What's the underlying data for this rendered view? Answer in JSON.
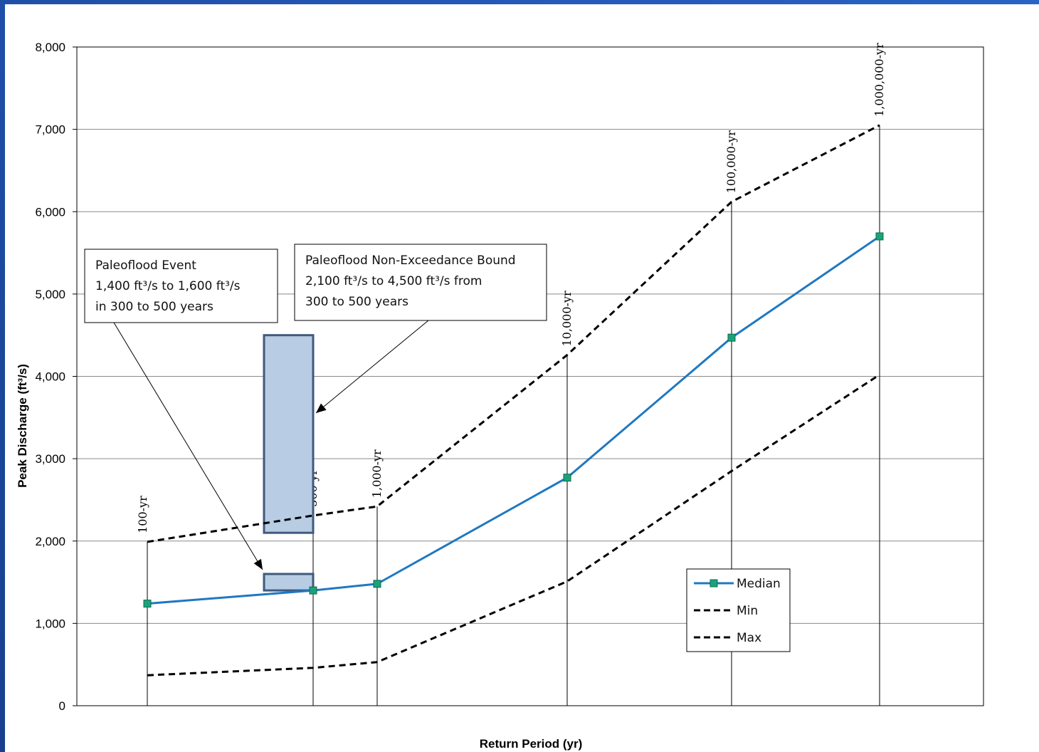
{
  "chart_data": {
    "type": "line",
    "xlabel": "Return Period (yr)",
    "ylabel": "Peak Discharge (ft³/s)",
    "ylim": [
      0,
      8000
    ],
    "y_ticks": [
      "0",
      "1,000",
      "2,000",
      "3,000",
      "4,000",
      "5,000",
      "6,000",
      "7,000",
      "8,000"
    ],
    "y_tick_values": [
      0,
      1000,
      2000,
      3000,
      4000,
      5000,
      6000,
      7000,
      8000
    ],
    "x": [
      100,
      500,
      1000,
      10000,
      100000,
      1000000
    ],
    "x_labels": [
      "100-yr",
      "500-yr",
      "1,000-yr",
      "10,000-yr",
      "100,000-yr",
      "1,000,000-yr"
    ],
    "grid": true,
    "legend_position": "bottom-right",
    "series": [
      {
        "name": "Median",
        "values": [
          1240,
          1400,
          1480,
          2770,
          4470,
          5700
        ],
        "color": "#1f78c1",
        "style": "solid",
        "marker": "square",
        "marker_color": "#1aa37a"
      },
      {
        "name": "Min",
        "values": [
          370,
          460,
          530,
          1510,
          2850,
          4020
        ],
        "color": "#000000",
        "style": "dashed"
      },
      {
        "name": "Max",
        "values": [
          1990,
          2310,
          2420,
          4260,
          6120,
          7050
        ],
        "color": "#000000",
        "style": "dashed"
      }
    ],
    "boxes": [
      {
        "name": "non-exceedance-bound",
        "x_from": 300,
        "x_to": 500,
        "y_from": 2100,
        "y_to": 4500
      },
      {
        "name": "paleoflood-event",
        "x_from": 300,
        "x_to": 500,
        "y_from": 1400,
        "y_to": 1600
      }
    ],
    "annotations": [
      {
        "name": "paleoflood-event",
        "lines": [
          "Paleoflood Event",
          "1,400 ft³/s to 1,600 ft³/s",
          "in 300 to 500 years"
        ],
        "points_to": "paleoflood-event"
      },
      {
        "name": "non-exceedance",
        "lines": [
          "Paleoflood Non-Exceedance Bound",
          "2,100 ft³/s to 4,500 ft³/s from",
          "300 to 500 years"
        ],
        "points_to": "non-exceedance-bound"
      }
    ],
    "colors": {
      "box_fill": "#b8cce4",
      "box_stroke": "#3f5a7d"
    }
  }
}
